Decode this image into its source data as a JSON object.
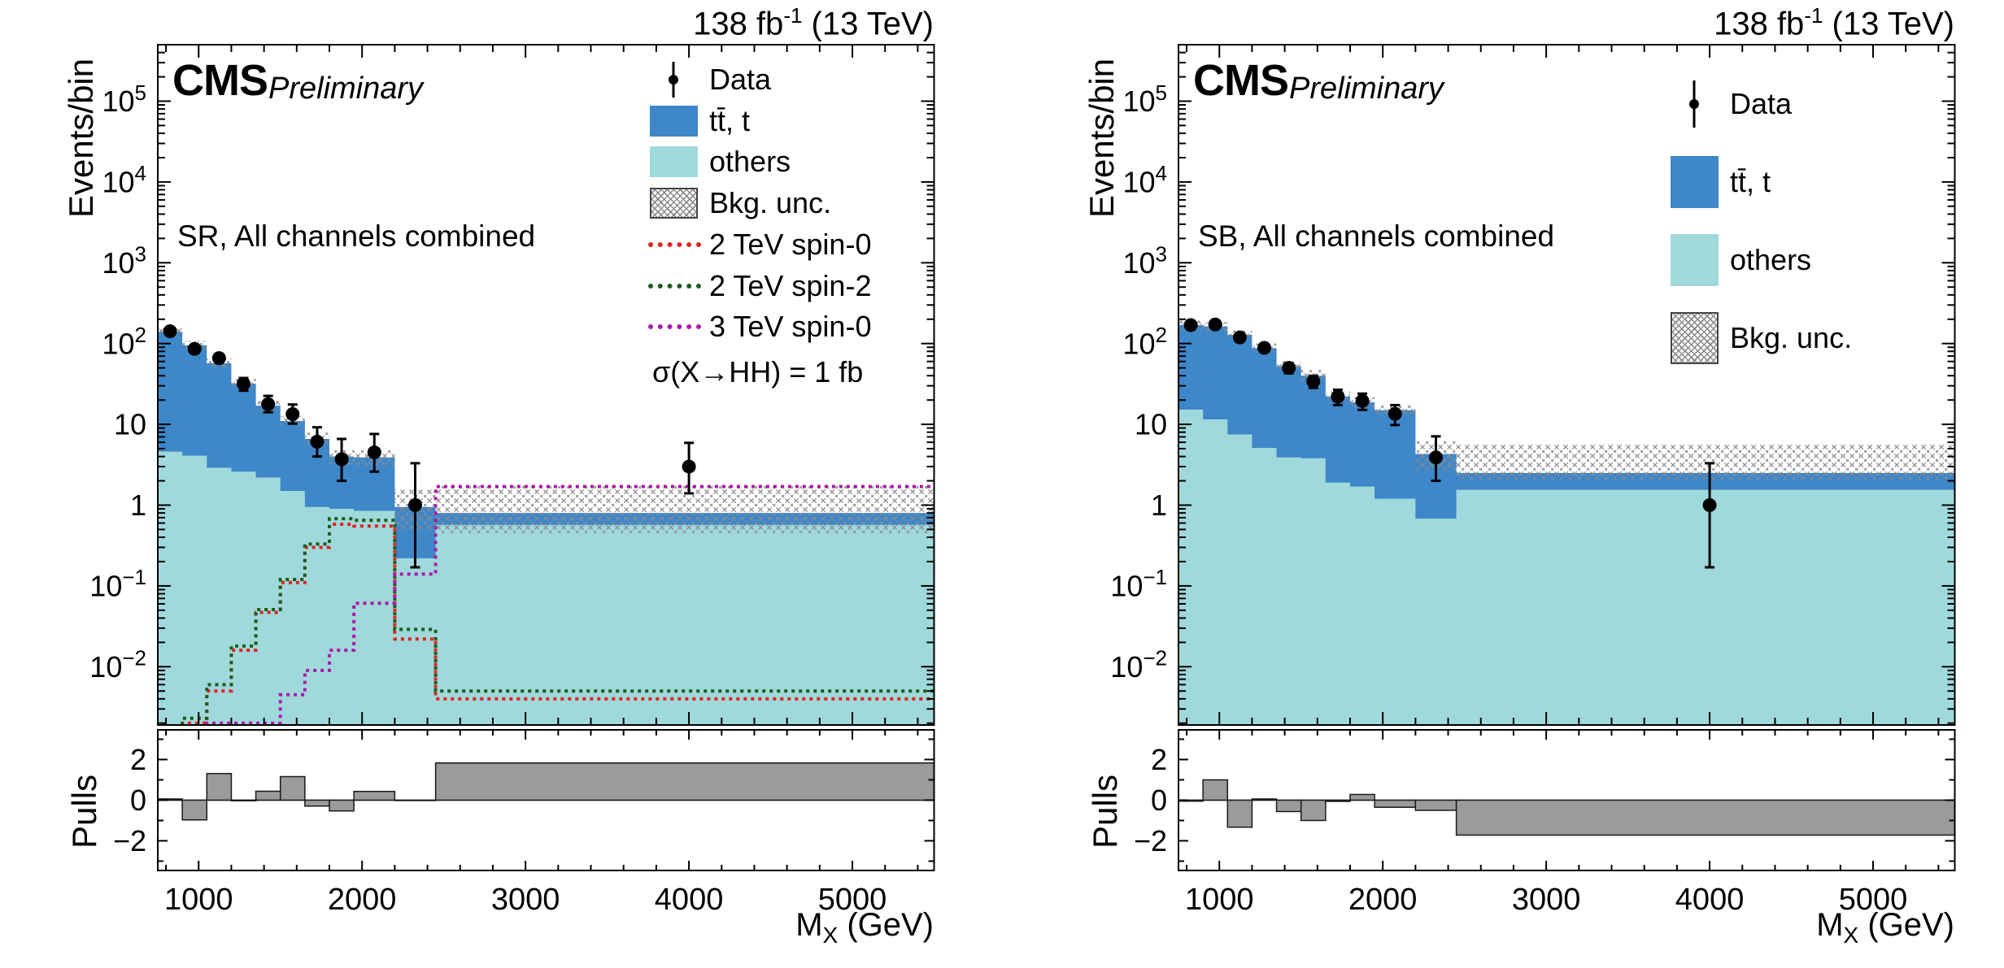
{
  "meta": {
    "lumi_pre": "138 fb",
    "lumi_sup": "-1",
    "lumi_post": " (13 TeV)",
    "cms": "CMS",
    "prelim": "Preliminary"
  },
  "axes": {
    "ylabel": "Events/bin",
    "pulls_label": "Pulls",
    "xlabel_main": "M",
    "xlabel_sub": "X",
    "xlabel_rest": " (GeV)",
    "xlim": [
      750,
      5500
    ],
    "ylim": [
      0.0019,
      500000
    ],
    "pulls_lim": [
      -3.46,
      3.46
    ],
    "xticks": [
      {
        "v": 1000,
        "label": "1000"
      },
      {
        "v": 2000,
        "label": "2000"
      },
      {
        "v": 3000,
        "label": "3000"
      },
      {
        "v": 4000,
        "label": "4000"
      },
      {
        "v": 5000,
        "label": "5000"
      }
    ],
    "yticks": [
      {
        "v": 100000,
        "base": "10",
        "exp": "5"
      },
      {
        "v": 10000,
        "base": "10",
        "exp": "4"
      },
      {
        "v": 1000,
        "base": "10",
        "exp": "3"
      },
      {
        "v": 100,
        "base": "10",
        "exp": "2"
      },
      {
        "v": 10,
        "base": "10",
        "exp": ""
      },
      {
        "v": 1,
        "base": "1",
        "exp": ""
      },
      {
        "v": 0.1,
        "base": "10",
        "exp": "−1"
      },
      {
        "v": 0.01,
        "base": "10",
        "exp": "−2"
      }
    ],
    "pulls_ticks": [
      {
        "v": 2,
        "label": "2"
      },
      {
        "v": 0,
        "label": "0"
      },
      {
        "v": -2,
        "label": "−2"
      }
    ]
  },
  "colors": {
    "ttbar": "#3E87C9",
    "others": "#A0D9DB",
    "hatch": "#8a8a8a",
    "data": "#000000",
    "pulls_bar": "#9B9B9B",
    "sig_red": "#E22222",
    "sig_green": "#1E5C1E",
    "sig_magenta": "#AA1AAA"
  },
  "chart_data": [
    {
      "type": "stacked-log-histogram",
      "region_label": "SR, All channels combined",
      "note": "σ(X→HH) = 1 fb",
      "bin_edges": [
        750,
        900,
        1050,
        1200,
        1350,
        1500,
        1650,
        1800,
        1950,
        2200,
        2450,
        5500
      ],
      "stack": {
        "others": [
          4.6,
          4.1,
          2.9,
          2.6,
          2.2,
          1.5,
          0.95,
          0.9,
          0.85,
          0.22,
          0.57
        ],
        "total_bkg": [
          140,
          95,
          57,
          32,
          17,
          11,
          6.6,
          4.0,
          3.9,
          0.95,
          0.8
        ]
      },
      "band_lo": [
        123,
        83,
        50,
        28,
        14.9,
        9.6,
        5.5,
        3.2,
        3.1,
        0.48,
        0.45
      ],
      "band_hi": [
        158,
        108,
        65,
        36.5,
        19.4,
        12.6,
        7.9,
        4.9,
        4.9,
        1.55,
        1.75
      ],
      "data": {
        "x": [
          825,
          975,
          1125,
          1275,
          1425,
          1575,
          1725,
          1875,
          2075,
          2325,
          4000
        ],
        "y": [
          142,
          86,
          66,
          31.8,
          17.8,
          13.4,
          6.1,
          3.7,
          4.5,
          1.0,
          3.0
        ],
        "err_hi": [
          12,
          9.3,
          8.1,
          5.7,
          4.7,
          4.2,
          3.1,
          2.9,
          3.1,
          2.3,
          2.9
        ],
        "err_lo": [
          12,
          9.3,
          8.1,
          5.7,
          3.7,
          3.2,
          2.1,
          1.7,
          1.9,
          0.83,
          1.6
        ]
      },
      "signals": [
        {
          "name": "2 TeV spin-0",
          "color_key": "sig_red",
          "values": [
            null,
            0.002,
            0.005,
            0.016,
            0.047,
            0.11,
            0.3,
            0.58,
            0.55,
            0.022,
            0.004
          ]
        },
        {
          "name": "2 TeV spin-2",
          "color_key": "sig_green",
          "values": [
            null,
            0.0023,
            0.006,
            0.018,
            0.051,
            0.12,
            0.33,
            0.68,
            0.65,
            0.029,
            0.005
          ]
        },
        {
          "name": "3 TeV spin-0",
          "color_key": "sig_magenta",
          "values": [
            null,
            null,
            0.002,
            0.002,
            0.002,
            0.0045,
            0.009,
            0.016,
            0.061,
            0.14,
            1.7
          ]
        }
      ],
      "pulls": [
        0.06,
        -0.97,
        1.31,
        -0.03,
        0.44,
        1.16,
        -0.29,
        -0.53,
        0.43,
        -0.02,
        1.83
      ],
      "legend": [
        {
          "type": "marker",
          "label": "Data"
        },
        {
          "type": "fill",
          "color_key": "ttbar",
          "label": "tt̄, t"
        },
        {
          "type": "fill",
          "color_key": "others",
          "label": "others"
        },
        {
          "type": "hatch",
          "label": "Bkg. unc."
        },
        {
          "type": "line",
          "color_key": "sig_red",
          "label": "2 TeV spin-0"
        },
        {
          "type": "line",
          "color_key": "sig_green",
          "label": "2 TeV spin-2"
        },
        {
          "type": "line",
          "color_key": "sig_magenta",
          "label": "3 TeV spin-0"
        }
      ]
    },
    {
      "type": "stacked-log-histogram",
      "region_label": "SB, All channels combined",
      "note": "",
      "bin_edges": [
        750,
        900,
        1050,
        1200,
        1350,
        1500,
        1650,
        1800,
        1950,
        2200,
        2450,
        5500
      ],
      "stack": {
        "others": [
          15.2,
          11.5,
          7.5,
          5.1,
          3.9,
          3.8,
          1.9,
          1.7,
          1.2,
          0.68,
          1.55
        ],
        "total_bkg": [
          170,
          163,
          128,
          88,
          52.5,
          40,
          22.2,
          18.8,
          15,
          4.3,
          2.5
        ]
      },
      "band_lo": [
        148,
        142,
        112,
        77,
        45,
        34,
        19,
        16,
        12.8,
        2.6,
        2.0
      ],
      "band_hi": [
        192,
        184,
        145,
        100,
        60,
        47,
        25.5,
        21.6,
        17.5,
        6.2,
        5.6
      ],
      "data": {
        "x": [
          825,
          975,
          1125,
          1275,
          1425,
          1575,
          1725,
          1875,
          2075,
          2325,
          4000
        ],
        "y": [
          169,
          172,
          119,
          88.5,
          50,
          34,
          22,
          19.5,
          13.5,
          3.9,
          1.0
        ],
        "err_hi": [
          13.1,
          13.2,
          11,
          9.5,
          7.1,
          5.9,
          4.8,
          4.5,
          3.8,
          3.2,
          2.3
        ],
        "err_lo": [
          13.1,
          13.2,
          10.9,
          9.4,
          7.1,
          5.8,
          4.7,
          4.4,
          3.7,
          1.9,
          0.83
        ]
      },
      "signals": [],
      "pulls": [
        -0.05,
        1.0,
        -1.33,
        0.06,
        -0.56,
        -1.0,
        -0.06,
        0.28,
        -0.35,
        -0.5,
        -1.72
      ],
      "legend": [
        {
          "type": "marker",
          "label": "Data"
        },
        {
          "type": "fill",
          "color_key": "ttbar",
          "label": "tt̄, t"
        },
        {
          "type": "fill",
          "color_key": "others",
          "label": "others"
        },
        {
          "type": "hatch",
          "label": "Bkg. unc."
        }
      ]
    }
  ]
}
